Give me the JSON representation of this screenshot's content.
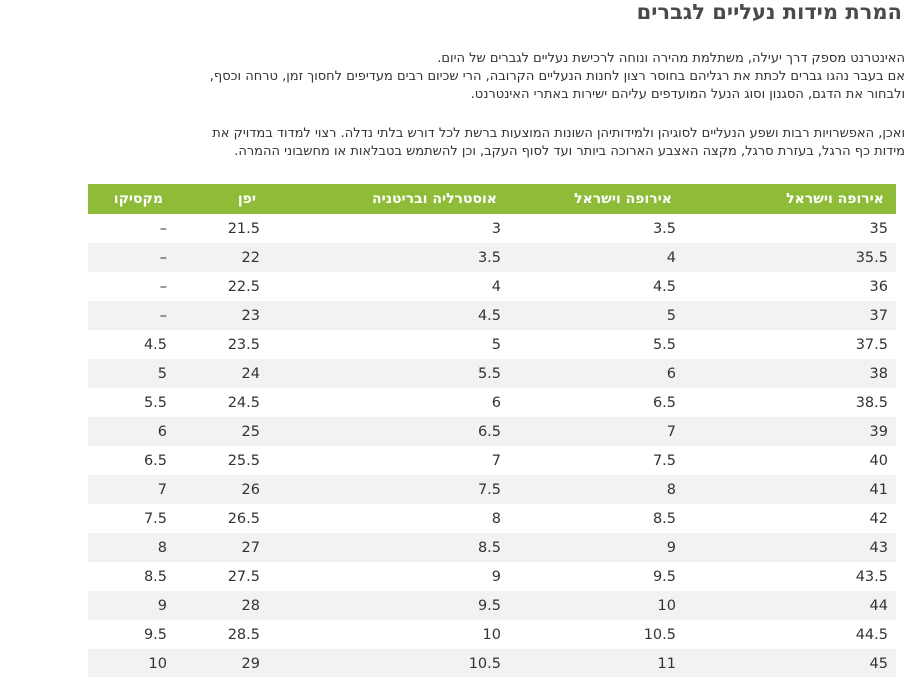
{
  "page": {
    "title": "המרת מידות נעליים לגברים",
    "paragraphs": [
      [
        "האינטרנט מספק דרך יעילה, משתלמת מהירה ונוחה לרכישת נעליים לגברים של היום.",
        "אם בעבר נהגו גברים לכתת את רגליהם בחוסר רצון לחנות הנעליים הקרובה, הרי שכיום רבים מעדיפים לחסוך זמן, טרחה וכסף,",
        "ולבחור את הדגם, הסגנון וסוג הנעל המועדפים עליהם ישירות באתרי האינטרנט."
      ],
      [
        "ואכן, האפשרויות רבות ושפע הנעליים לסוגיהן ולמידותיהן השונות המוצעות ברשת לכל דורש בלתי נדלה. רצוי למדוד במדויק את",
        "מידות כף הרגל, בעזרת סרגל, מקצה האצבע הארוכה ביותר ועד לסוף העקב, וכן להשתמש בטבלאות או מחשבוני ההמרה."
      ]
    ]
  },
  "size_table": {
    "headers": [
      "אירופה וישראל",
      "אירופה וישראל",
      "אוסטרליה ובריטניה",
      "יפן",
      "מקסיקו"
    ],
    "rows": [
      [
        "35",
        "3.5",
        "3",
        "21.5",
        "–"
      ],
      [
        "35.5",
        "4",
        "3.5",
        "22",
        "–"
      ],
      [
        "36",
        "4.5",
        "4",
        "22.5",
        "–"
      ],
      [
        "37",
        "5",
        "4.5",
        "23",
        "–"
      ],
      [
        "37.5",
        "5.5",
        "5",
        "23.5",
        "4.5"
      ],
      [
        "38",
        "6",
        "5.5",
        "24",
        "5"
      ],
      [
        "38.5",
        "6.5",
        "6",
        "24.5",
        "5.5"
      ],
      [
        "39",
        "7",
        "6.5",
        "25",
        "6"
      ],
      [
        "40",
        "7.5",
        "7",
        "25.5",
        "6.5"
      ],
      [
        "41",
        "8",
        "7.5",
        "26",
        "7"
      ],
      [
        "42",
        "8.5",
        "8",
        "26.5",
        "7.5"
      ],
      [
        "43",
        "9",
        "8.5",
        "27",
        "8"
      ],
      [
        "43.5",
        "9.5",
        "9",
        "27.5",
        "8.5"
      ],
      [
        "44",
        "10",
        "9.5",
        "28",
        "9"
      ],
      [
        "44.5",
        "10.5",
        "10",
        "28.5",
        "9.5"
      ],
      [
        "45",
        "11",
        "10.5",
        "29",
        "10"
      ]
    ]
  },
  "colors": {
    "header_bg": "#8fbc38",
    "stripe_bg": "#f2f2f2",
    "text": "#333333"
  }
}
